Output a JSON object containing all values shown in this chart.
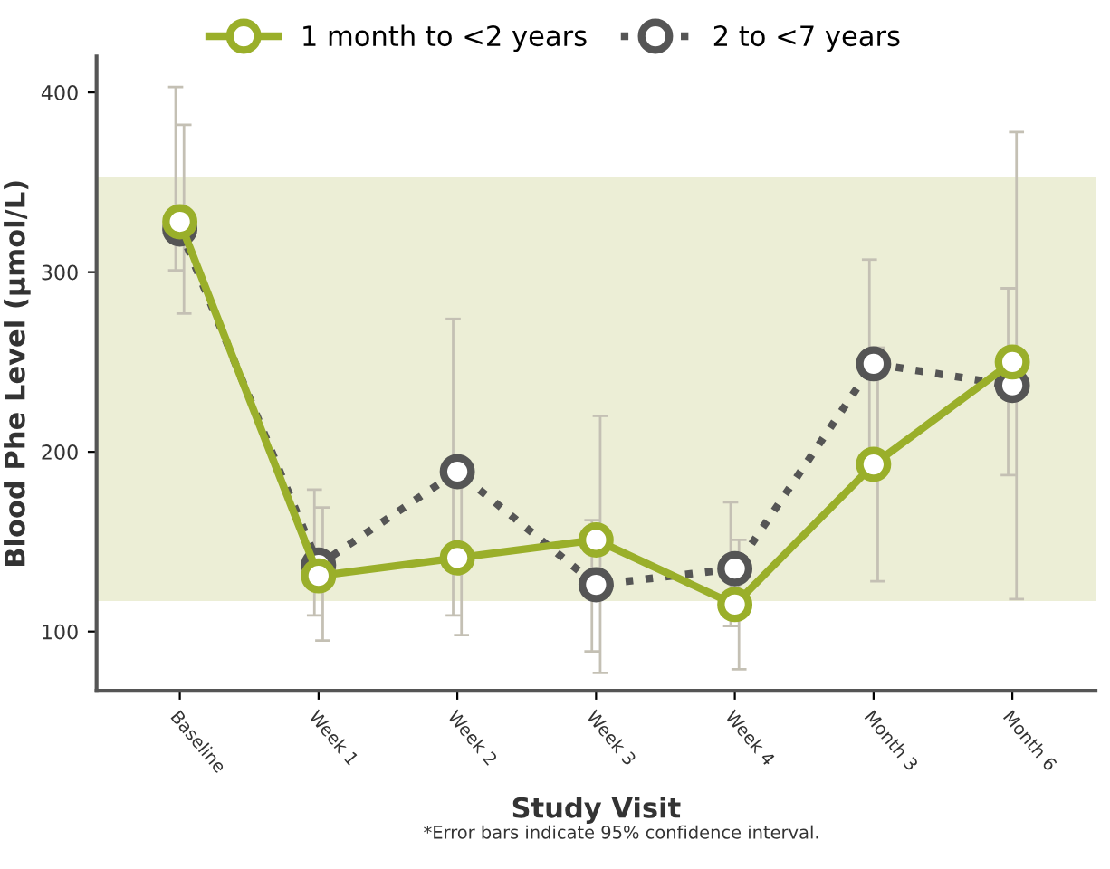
{
  "chart_data": {
    "type": "line",
    "xlabel": "Study Visit",
    "ylabel": "Blood Phe Level (µmol/L)",
    "annotations": [
      "*Error bars indicate 95% confidence interval."
    ],
    "categories": [
      "Baseline",
      "Week 1",
      "Week 2",
      "Week 3",
      "Week 4",
      "Month 3",
      "Month 6"
    ],
    "ylim": [
      67,
      420
    ],
    "yticks": [
      100,
      200,
      300,
      400
    ],
    "bands": [
      {
        "axis": "y",
        "from": 117,
        "to": 353,
        "color": "#eceed6"
      }
    ],
    "series": [
      {
        "name": "2 to <7 years",
        "color": "#555555",
        "line_style": "dotted",
        "values": [
          324,
          137,
          189,
          126,
          135,
          249,
          237
        ],
        "errors": [
          [
            301,
            403
          ],
          [
            109,
            179
          ],
          [
            109,
            274
          ],
          [
            89,
            162
          ],
          [
            103,
            172
          ],
          [
            191,
            307
          ],
          [
            187,
            291
          ]
        ]
      },
      {
        "name": "1 month to <2 years",
        "color": "#9aaf2a",
        "line_style": "solid",
        "values": [
          328,
          131,
          141,
          151,
          115,
          193,
          250
        ],
        "errors": [
          [
            277,
            382
          ],
          [
            95,
            169
          ],
          [
            98,
            185
          ],
          [
            77,
            220
          ],
          [
            79,
            151
          ],
          [
            128,
            258
          ],
          [
            118,
            378
          ]
        ]
      }
    ],
    "marker": "circle",
    "legend": "top",
    "grid": false
  }
}
